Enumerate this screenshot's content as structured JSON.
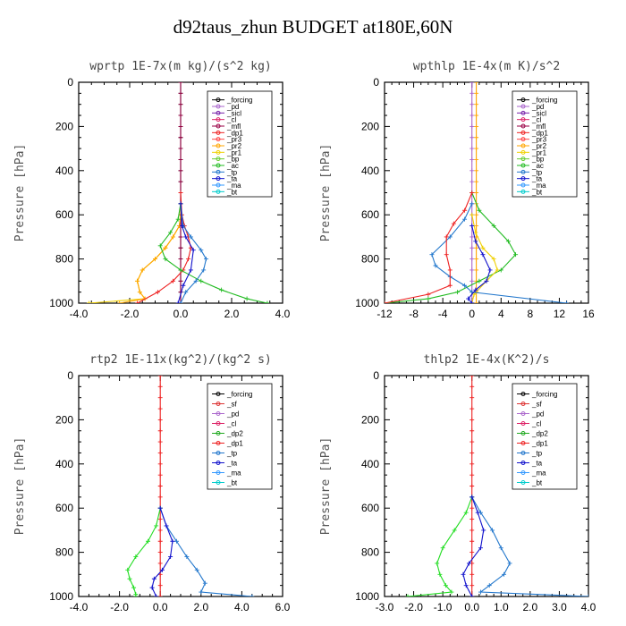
{
  "title": "d92taus_zhun  BUDGET at180E,60N",
  "chart_data": [
    {
      "type": "line",
      "title": "wprtp   1E-7x(m kg)/(s^2 kg)",
      "ylabel": "Pressure [hPa]",
      "xlim": [
        -4,
        4
      ],
      "ylim": [
        1000,
        0
      ],
      "xticks": [
        "-4.0",
        "-2.0",
        "0.0",
        "2.0",
        "4.0"
      ],
      "yticks": [
        "0",
        "200",
        "400",
        "600",
        "800",
        "1000"
      ],
      "legend": [
        "_forcing",
        "_pd",
        "_sicl",
        "_cl",
        "_mfl",
        "_dp1",
        "_pr3",
        "_pr2",
        "_pr1",
        "_bp",
        "_ac",
        "_tp",
        "_ta",
        "_ma",
        "_bt"
      ],
      "series": [
        {
          "name": "_forcing",
          "color": "#000000",
          "x": [
            0,
            0,
            0,
            0,
            0,
            0,
            0,
            0,
            0,
            0,
            0,
            0,
            0,
            0,
            0,
            0,
            0,
            0,
            0,
            0,
            0
          ],
          "y": [
            0,
            50,
            100,
            150,
            200,
            250,
            300,
            350,
            400,
            450,
            500,
            550,
            600,
            650,
            700,
            750,
            800,
            850,
            900,
            950,
            1000
          ]
        },
        {
          "name": "_mfl",
          "color": "#990044",
          "x": [
            0,
            0,
            0,
            0,
            0,
            0,
            0,
            0,
            0,
            0,
            0,
            0,
            0,
            0,
            0,
            0,
            0,
            0,
            0,
            0,
            0
          ],
          "y": [
            0,
            50,
            100,
            150,
            200,
            250,
            300,
            350,
            400,
            450,
            500,
            550,
            600,
            650,
            700,
            750,
            800,
            850,
            900,
            950,
            1000
          ]
        },
        {
          "name": "_pr1",
          "color": "#f0d000",
          "x": [
            0,
            0,
            -0.05,
            -0.3,
            -0.6,
            -1.0,
            -1.5,
            -1.7,
            -1.6,
            -1.4,
            -3.6
          ],
          "y": [
            550,
            600,
            650,
            700,
            750,
            800,
            850,
            900,
            950,
            980,
            1000
          ]
        },
        {
          "name": "_pr2",
          "color": "#ffa500",
          "x": [
            0,
            0,
            -0.05,
            -0.3,
            -0.6,
            -1.0,
            -1.5,
            -1.7,
            -1.6,
            -1.4,
            -2.4
          ],
          "y": [
            550,
            600,
            650,
            700,
            750,
            800,
            850,
            900,
            950,
            980,
            1000
          ]
        },
        {
          "name": "_dp1",
          "color": "#ee2222",
          "x": [
            0,
            0.05,
            0.15,
            0.3,
            0.4,
            0.3,
            0.1,
            -0.3,
            -0.9,
            -1.7
          ],
          "y": [
            500,
            600,
            650,
            700,
            750,
            800,
            850,
            900,
            950,
            1000
          ]
        },
        {
          "name": "_ac",
          "color": "#22bb22",
          "x": [
            0,
            -0.1,
            -0.4,
            -0.8,
            -0.6,
            0,
            0.8,
            1.6,
            2.6,
            3.4
          ],
          "y": [
            550,
            620,
            680,
            740,
            800,
            850,
            900,
            940,
            980,
            1000
          ]
        },
        {
          "name": "_tp",
          "color": "#2277cc",
          "x": [
            0,
            0.1,
            0.4,
            0.8,
            1.0,
            0.9,
            0.6,
            0.2,
            0.0
          ],
          "y": [
            550,
            650,
            700,
            760,
            800,
            850,
            900,
            950,
            1000
          ]
        },
        {
          "name": "_ta",
          "color": "#1111cc",
          "x": [
            0,
            0.05,
            0.2,
            0.5,
            0.4,
            0.1,
            -0.1
          ],
          "y": [
            550,
            650,
            700,
            760,
            850,
            920,
            1000
          ]
        }
      ]
    },
    {
      "type": "line",
      "title": "wpthlp   1E-4x(m K)/s^2",
      "ylabel": "Pressure [hPa]",
      "xlim": [
        -12,
        16
      ],
      "ylim": [
        1000,
        0
      ],
      "xticks": [
        "-12",
        "-8",
        "-4",
        "0",
        "4",
        "8",
        "12",
        "16"
      ],
      "yticks": [
        "0",
        "200",
        "400",
        "600",
        "800",
        "1000"
      ],
      "legend": [
        "_forcing",
        "_pd",
        "_sicl",
        "_cl",
        "_mfl",
        "_dp1",
        "_pr3",
        "_pr2",
        "_pr1",
        "_bp",
        "_ac",
        "_tp",
        "_ta",
        "_ma",
        "_bt"
      ],
      "series": [
        {
          "name": "_forcing",
          "color": "#aa66cc",
          "x": [
            0,
            0,
            0,
            0,
            0,
            0,
            0,
            0,
            0,
            0,
            0,
            0,
            0,
            0,
            0,
            0,
            0,
            0,
            0,
            0,
            0
          ],
          "y": [
            0,
            50,
            100,
            150,
            200,
            250,
            300,
            350,
            400,
            450,
            500,
            550,
            600,
            650,
            700,
            750,
            800,
            850,
            900,
            950,
            1000
          ]
        },
        {
          "name": "_pr2",
          "color": "#ffa500",
          "x": [
            0.6,
            0.6,
            0.6,
            0.6,
            0.6,
            0.6,
            0.6,
            0.6,
            0.6,
            0.6,
            0.6,
            0.6,
            0.6,
            0.6,
            0.6,
            0.6,
            0.6,
            0.6,
            0.6,
            0.6,
            0.6
          ],
          "y": [
            0,
            50,
            100,
            150,
            200,
            250,
            300,
            350,
            400,
            450,
            500,
            550,
            600,
            650,
            700,
            750,
            800,
            850,
            900,
            950,
            1000
          ]
        },
        {
          "name": "_ac",
          "color": "#22bb22",
          "x": [
            0,
            1,
            3,
            5,
            6,
            4,
            1,
            -2,
            -6,
            -12
          ],
          "y": [
            500,
            580,
            650,
            720,
            780,
            850,
            900,
            950,
            980,
            1000
          ]
        },
        {
          "name": "_pr1",
          "color": "#f0d000",
          "x": [
            0,
            0.5,
            1.5,
            3,
            3.5,
            2,
            0.3,
            0
          ],
          "y": [
            600,
            680,
            750,
            800,
            850,
            900,
            960,
            1000
          ]
        },
        {
          "name": "_tp",
          "color": "#2277cc",
          "x": [
            0,
            -1,
            -3,
            -5.5,
            -5,
            -3,
            -1,
            0,
            13
          ],
          "y": [
            550,
            620,
            700,
            780,
            830,
            880,
            920,
            950,
            1000
          ]
        },
        {
          "name": "_dp1",
          "color": "#ee2222",
          "x": [
            0,
            -1,
            -2.5,
            -3.5,
            -3.5,
            -3,
            -3,
            -6,
            -12
          ],
          "y": [
            500,
            580,
            640,
            700,
            780,
            850,
            920,
            960,
            1000
          ]
        },
        {
          "name": "_ta",
          "color": "#1111cc",
          "x": [
            0,
            0.5,
            1.5,
            2.5,
            2,
            0.5,
            -0.5,
            0
          ],
          "y": [
            650,
            720,
            780,
            850,
            900,
            940,
            980,
            1000
          ]
        }
      ]
    },
    {
      "type": "line",
      "title": "rtp2   1E-11x(kg^2)/(kg^2 s)",
      "ylabel": "Pressure [hPa]",
      "xlim": [
        -4,
        6
      ],
      "ylim": [
        1000,
        0
      ],
      "xticks": [
        "-4.0",
        "-2.0",
        "0.0",
        "2.0",
        "4.0",
        "6.0"
      ],
      "yticks": [
        "0",
        "200",
        "400",
        "600",
        "800",
        "1000"
      ],
      "legend": [
        "_forcing",
        "_sf",
        "_pd",
        "_cl",
        "_dp2",
        "_dp1",
        "_tp",
        "_ta",
        "_ma",
        "_bt"
      ],
      "series": [
        {
          "name": "_forcing",
          "color": "#ee2222",
          "x": [
            0,
            0,
            0,
            0,
            0,
            0,
            0,
            0,
            0,
            0,
            0,
            0,
            0,
            0,
            0,
            0,
            0,
            0,
            0,
            0,
            0
          ],
          "y": [
            0,
            50,
            100,
            150,
            200,
            250,
            300,
            350,
            400,
            450,
            500,
            550,
            600,
            650,
            700,
            750,
            800,
            850,
            900,
            950,
            1000
          ]
        },
        {
          "name": "_dp1",
          "color": "#22dd22",
          "x": [
            0,
            -0.2,
            -0.6,
            -1.2,
            -1.6,
            -1.5,
            -1.3,
            -1.2,
            -1.2
          ],
          "y": [
            600,
            680,
            750,
            820,
            880,
            920,
            960,
            990,
            1000
          ]
        },
        {
          "name": "_tp",
          "color": "#2277cc",
          "x": [
            0,
            0.3,
            0.8,
            1.3,
            1.8,
            2.2,
            2.0,
            4.5
          ],
          "y": [
            600,
            680,
            750,
            820,
            880,
            940,
            980,
            1000
          ]
        },
        {
          "name": "_ta",
          "color": "#1111cc",
          "x": [
            0,
            0.3,
            0.6,
            0.5,
            0.1,
            -0.3,
            -0.4,
            -0.2
          ],
          "y": [
            600,
            680,
            750,
            820,
            880,
            920,
            960,
            1000
          ]
        }
      ]
    },
    {
      "type": "line",
      "title": "thlp2   1E-4x(K^2)/s",
      "ylabel": "Pressure [hPa]",
      "xlim": [
        -3,
        4
      ],
      "ylim": [
        1000,
        0
      ],
      "xticks": [
        "-3.0",
        "-2.0",
        "-1.0",
        "0.0",
        "1.0",
        "2.0",
        "3.0",
        "4.0"
      ],
      "yticks": [
        "0",
        "200",
        "400",
        "600",
        "800",
        "1000"
      ],
      "legend": [
        "_forcing",
        "_sf",
        "_pd",
        "_cl",
        "_dp2",
        "_dp1",
        "_tp",
        "_ta",
        "_ma",
        "_bt"
      ],
      "series": [
        {
          "name": "_forcing",
          "color": "#ee2222",
          "x": [
            0,
            0,
            0,
            0,
            0,
            0,
            0,
            0,
            0,
            0,
            0,
            0,
            0,
            0,
            0,
            0,
            0,
            0,
            0,
            0,
            0
          ],
          "y": [
            0,
            50,
            100,
            150,
            200,
            250,
            300,
            350,
            400,
            450,
            500,
            550,
            600,
            650,
            700,
            750,
            800,
            850,
            900,
            950,
            1000
          ]
        },
        {
          "name": "_dp1",
          "color": "#22dd22",
          "x": [
            0,
            -0.2,
            -0.6,
            -1.0,
            -1.2,
            -1.1,
            -0.9,
            -0.7,
            -2.2
          ],
          "y": [
            550,
            620,
            700,
            780,
            850,
            900,
            950,
            980,
            1000
          ]
        },
        {
          "name": "_tp",
          "color": "#2277cc",
          "x": [
            0,
            0.3,
            0.7,
            1.0,
            1.3,
            1.1,
            0.6,
            0.3,
            4.0
          ],
          "y": [
            550,
            620,
            700,
            780,
            850,
            900,
            950,
            980,
            1000
          ]
        },
        {
          "name": "_ta",
          "color": "#1111cc",
          "x": [
            0,
            0.2,
            0.4,
            0.3,
            -0.1,
            -0.3,
            -0.2,
            0
          ],
          "y": [
            550,
            620,
            700,
            780,
            850,
            900,
            950,
            1000
          ]
        }
      ]
    }
  ]
}
